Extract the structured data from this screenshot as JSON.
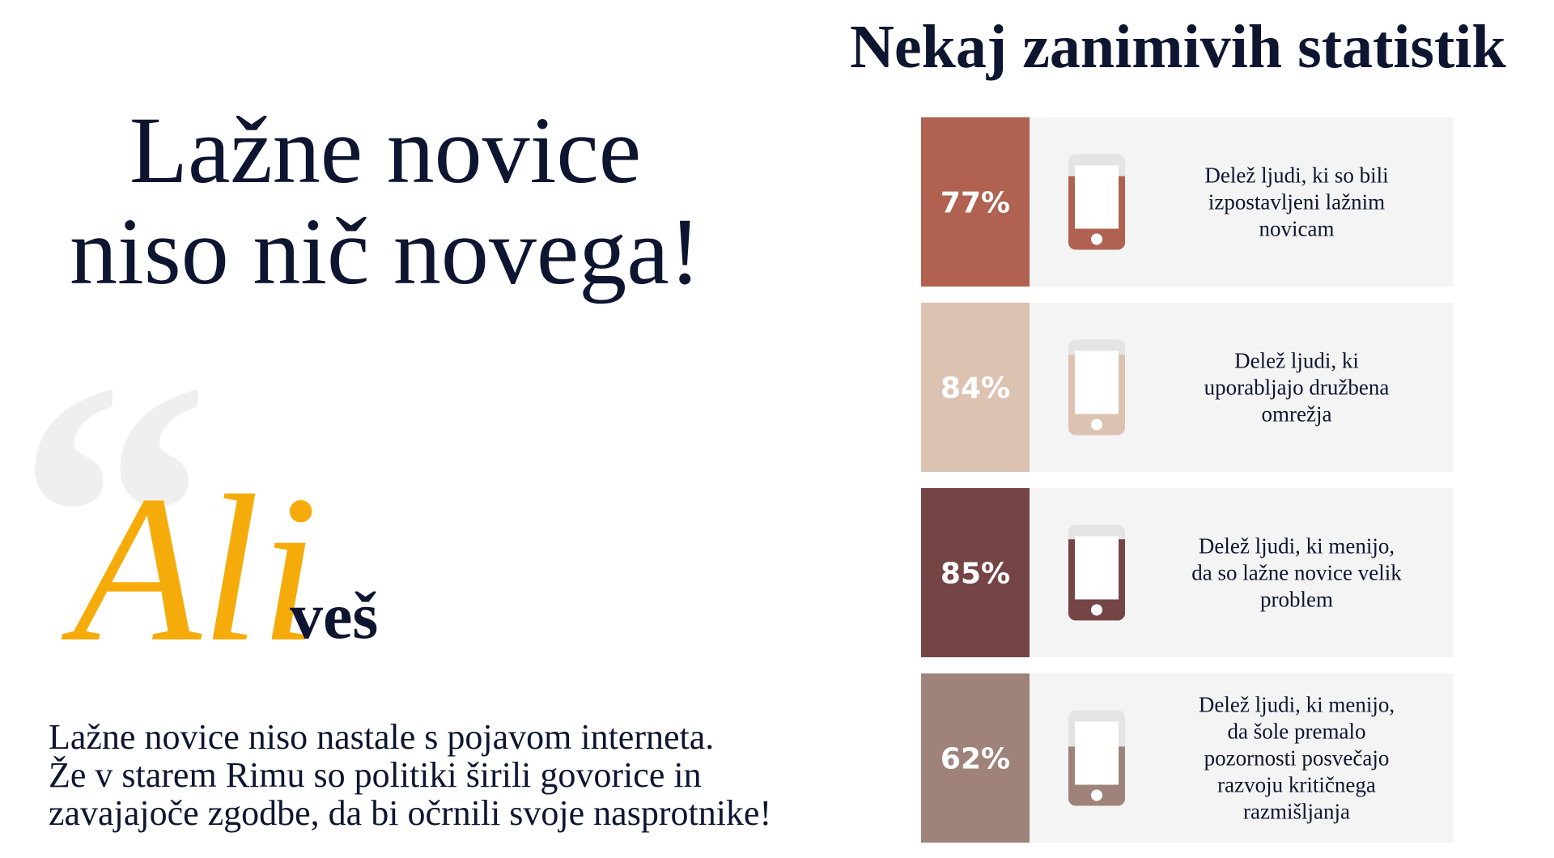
{
  "header": {
    "title_line1": "Lažne novice",
    "title_line2": "niso nič novega!"
  },
  "quote": {
    "script_word": "Ali",
    "word": "veš"
  },
  "paragraph": [
    "Lažne novice niso nastale s pojavom interneta.",
    "Že v starem Rimu so politiki širili govorice in",
    "zavajajoče zgodbe, da bi očrnili svoje nasprotnike!"
  ],
  "stats": {
    "title": "Nekaj zanimivih statistik",
    "items": [
      {
        "value": 77,
        "label": "77%",
        "color": "#b06150",
        "text": [
          "Delež ljudi, ki so bili",
          "izpostavljeni lažnim",
          "novicam"
        ]
      },
      {
        "value": 84,
        "label": "84%",
        "color": "#dcc2b0",
        "text": [
          "Delež ljudi, ki",
          "uporabljajo družbena",
          "omrežja"
        ]
      },
      {
        "value": 85,
        "label": "85%",
        "color": "#754545",
        "text": [
          "Delež ljudi, ki menijo,",
          "da so lažne novice velik",
          "problem"
        ]
      },
      {
        "value": 62,
        "label": "62%",
        "color": "#9f837a",
        "text": [
          "Delež ljudi, ki menijo,",
          "da šole premalo",
          "pozornosti posvečajo",
          "razvoju kritičnega",
          "razmišljanja"
        ]
      }
    ]
  }
}
